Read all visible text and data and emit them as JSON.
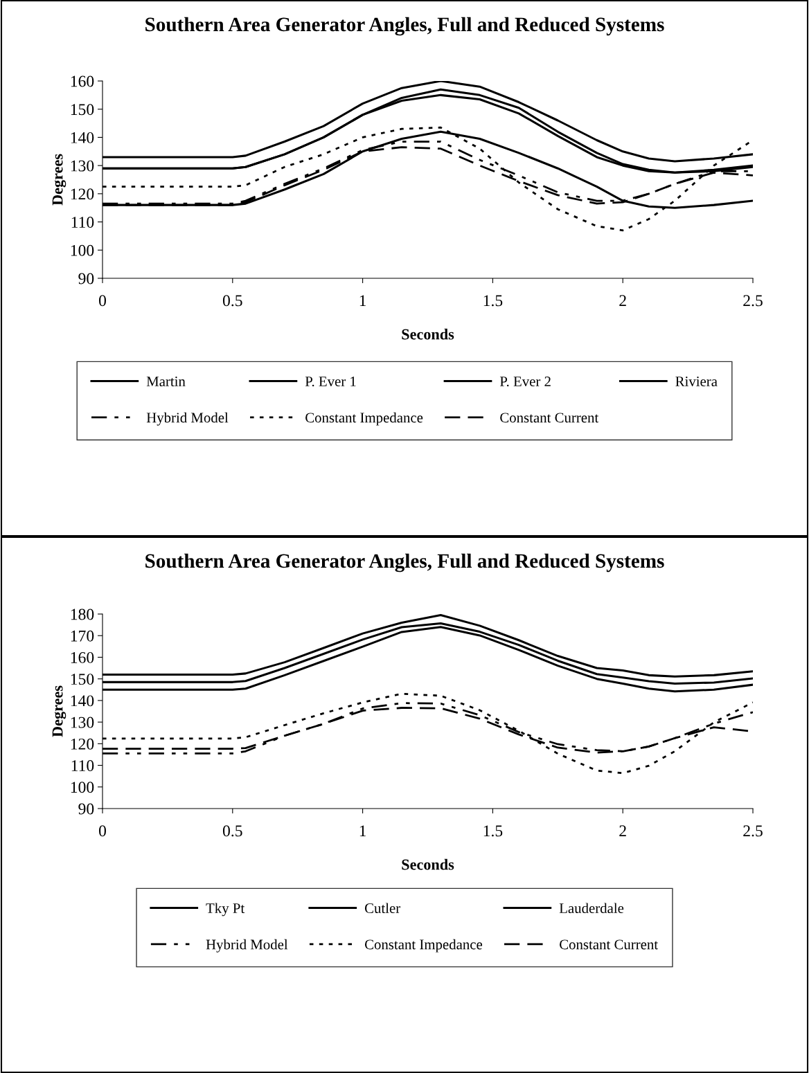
{
  "chart_data": [
    {
      "type": "line",
      "title": "Southern Area Generator Angles, Full and Reduced Systems",
      "xlabel": "Seconds",
      "ylabel": "Degrees",
      "xlim": [
        0,
        2.5
      ],
      "xticks": [
        0,
        0.5,
        1,
        1.5,
        2,
        2.5
      ],
      "ylim": [
        90,
        160
      ],
      "yticks": [
        90,
        100,
        110,
        120,
        130,
        140,
        150,
        160
      ],
      "grid": false,
      "legend": "bottom",
      "marker": "none",
      "x": [
        0,
        0.5,
        0.55,
        0.7,
        0.85,
        1.0,
        1.15,
        1.3,
        1.45,
        1.6,
        1.75,
        1.9,
        2.0,
        2.1,
        2.2,
        2.35,
        2.5
      ],
      "series": [
        {
          "name": "Martin",
          "color": "#000000",
          "line_style": "solid",
          "values": [
            133,
            133,
            133.5,
            138.5,
            144,
            152,
            157.5,
            160,
            158,
            152.5,
            146,
            139,
            135,
            132.5,
            131.5,
            132.5,
            134
          ]
        },
        {
          "name": "P. Ever 1",
          "color": "#000000",
          "line_style": "solid",
          "values": [
            129,
            129,
            129.5,
            134,
            140,
            148,
            154,
            157,
            155,
            150.5,
            142,
            134.5,
            130.5,
            128.5,
            127.5,
            128.5,
            130
          ]
        },
        {
          "name": "P. Ever 2",
          "color": "#000000",
          "line_style": "solid",
          "values": [
            129,
            129,
            129.5,
            134,
            140,
            148,
            153,
            155,
            153.5,
            148.5,
            140.5,
            133,
            130,
            128,
            127.5,
            128,
            129.5
          ]
        },
        {
          "name": "Riviera",
          "color": "#000000",
          "line_style": "solid",
          "values": [
            116,
            116,
            116.5,
            121.5,
            127,
            135,
            139.5,
            142,
            139.5,
            134.5,
            129,
            122.5,
            117.5,
            115.5,
            115,
            116,
            117.5
          ]
        },
        {
          "name": "Hybrid Model",
          "color": "#000000",
          "line_style": "dashdot",
          "values": [
            116.5,
            116.5,
            117.5,
            123.5,
            129,
            135.5,
            138.5,
            138.5,
            132,
            126.5,
            120.5,
            117.5,
            117.5,
            120,
            123.5,
            128,
            128
          ]
        },
        {
          "name": "Constant Impedance",
          "color": "#000000",
          "line_style": "dotted",
          "values": [
            122.5,
            122.5,
            123,
            129.5,
            134,
            140,
            143,
            143.5,
            136,
            124,
            114.5,
            108.5,
            107,
            111,
            117.5,
            130,
            139
          ]
        },
        {
          "name": "Constant Current",
          "color": "#000000",
          "line_style": "dashed",
          "values": [
            116,
            116,
            117,
            123,
            128.5,
            135,
            136.5,
            136,
            130,
            124.5,
            119.5,
            116.5,
            117,
            120,
            123.5,
            127.5,
            126.5
          ]
        }
      ]
    },
    {
      "type": "line",
      "title": "Southern Area Generator Angles, Full and Reduced Systems",
      "xlabel": "Seconds",
      "ylabel": "Degrees",
      "xlim": [
        0,
        2.5
      ],
      "xticks": [
        0,
        0.5,
        1,
        1.5,
        2,
        2.5
      ],
      "ylim": [
        90,
        180
      ],
      "yticks": [
        90,
        100,
        110,
        120,
        130,
        140,
        150,
        160,
        170,
        180
      ],
      "grid": false,
      "legend": "bottom",
      "marker": "none",
      "x": [
        0,
        0.5,
        0.55,
        0.7,
        0.85,
        1.0,
        1.15,
        1.3,
        1.45,
        1.6,
        1.75,
        1.9,
        2.0,
        2.1,
        2.2,
        2.35,
        2.5
      ],
      "series": [
        {
          "name": "Tky Pt",
          "color": "#000000",
          "line_style": "solid",
          "values": [
            152,
            152,
            152.5,
            157.7,
            164.3,
            171,
            176,
            179.5,
            174.6,
            167.9,
            160.6,
            155,
            153.9,
            151.7,
            151.1,
            151.7,
            153.5
          ]
        },
        {
          "name": "Cutler",
          "color": "#000000",
          "line_style": "solid",
          "values": [
            148.5,
            148.5,
            149,
            155,
            161.6,
            168.2,
            173.9,
            175.7,
            171.8,
            165.7,
            158.4,
            152.2,
            150.6,
            148.9,
            147.8,
            148.3,
            150.2
          ]
        },
        {
          "name": "Lauderdale",
          "color": "#000000",
          "line_style": "solid",
          "values": [
            145,
            145,
            145.5,
            151.7,
            158.3,
            164.9,
            171.7,
            174,
            170.1,
            163.4,
            156.1,
            150,
            147.8,
            145.5,
            144.2,
            145,
            147.3
          ]
        },
        {
          "name": "Hybrid Model",
          "color": "#000000",
          "line_style": "dashdot",
          "values": [
            115.5,
            115.5,
            116.5,
            123.7,
            129.2,
            136.3,
            138.8,
            138.6,
            133.2,
            125.4,
            119.8,
            117,
            116.5,
            118.7,
            122.6,
            129.3,
            134.6
          ]
        },
        {
          "name": "Constant Impedance",
          "color": "#000000",
          "line_style": "dotted",
          "values": [
            122.4,
            122.4,
            123,
            128.6,
            134.1,
            139.1,
            143.1,
            142.2,
            135.5,
            126,
            115.4,
            107.6,
            106.4,
            109.8,
            116.5,
            129.9,
            139.1
          ]
        },
        {
          "name": "Constant Current",
          "color": "#000000",
          "line_style": "dashed",
          "values": [
            117.7,
            117.7,
            118,
            123.7,
            129.2,
            135.3,
            136.6,
            136.4,
            131.6,
            124.3,
            118.2,
            115.9,
            116.5,
            118.7,
            122.6,
            127.6,
            125.7
          ]
        }
      ]
    }
  ]
}
